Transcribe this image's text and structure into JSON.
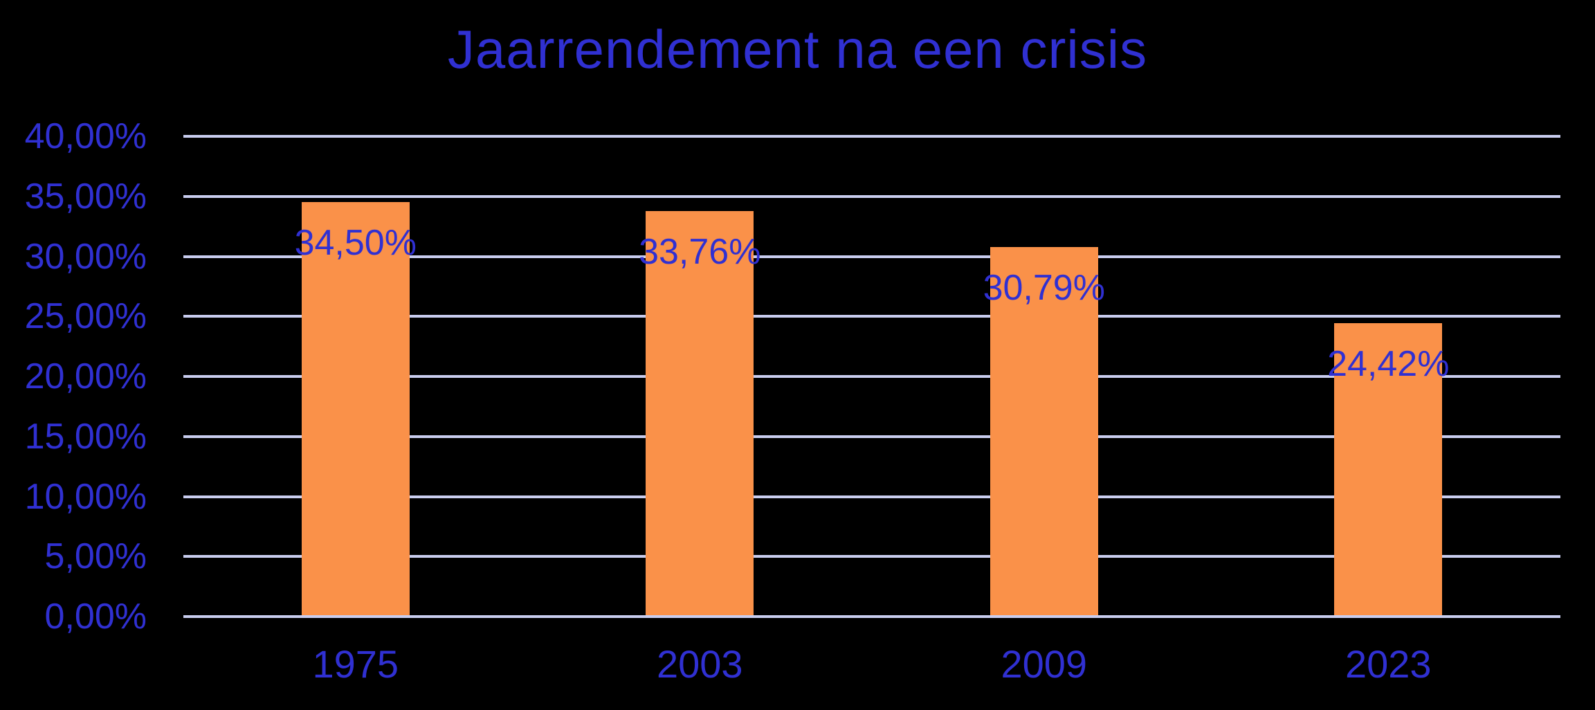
{
  "chart_data": {
    "type": "bar",
    "title": "Jaarrendement na een crisis",
    "categories": [
      "1975",
      "2003",
      "2009",
      "2023"
    ],
    "values": [
      34.5,
      33.76,
      30.79,
      24.42
    ],
    "value_labels": [
      "34,50%",
      "33,76%",
      "30,79%",
      "24,42%"
    ],
    "y_ticks": [
      "40,00%",
      "35,00%",
      "30,00%",
      "25,00%",
      "20,00%",
      "15,00%",
      "10,00%",
      "5,00%",
      "0,00%"
    ],
    "ylim": [
      0,
      40
    ],
    "xlabel": "",
    "ylabel": "",
    "grid": true,
    "legend": "none",
    "decimal_separator": ",",
    "colors": {
      "background": "#000000",
      "text": "#3030D2",
      "bar": "#FA9149",
      "gridline": "#C9CDEF"
    }
  }
}
